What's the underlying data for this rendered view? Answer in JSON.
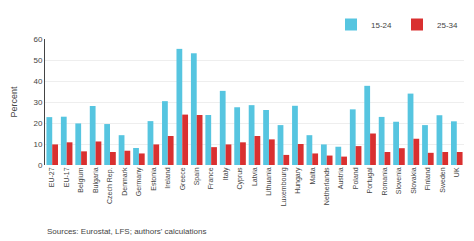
{
  "chart_data": {
    "type": "bar",
    "categories": [
      "EU-27",
      "EU-17",
      "Belgium",
      "Bulgaria",
      "Czech Rep.",
      "Denmark",
      "Germany",
      "Estonia",
      "Ireland",
      "Greece",
      "Spain",
      "France",
      "Italy",
      "Cyprus",
      "Latvia",
      "Lithuania",
      "Luxembourg",
      "Hungary",
      "Malta",
      "Netherlands",
      "Austria",
      "Poland",
      "Portugal",
      "Romania",
      "Slovenia",
      "Slovakia",
      "Finland",
      "Sweden",
      "UK"
    ],
    "series": [
      {
        "name": "15-24",
        "color": "#56c5e0",
        "values": [
          22.8,
          23.0,
          19.8,
          28.1,
          19.5,
          14.2,
          8.1,
          20.9,
          30.4,
          55.3,
          53.2,
          23.8,
          35.3,
          27.5,
          28.5,
          26.2,
          19.0,
          28.2,
          14.2,
          9.8,
          8.7,
          26.5,
          37.7,
          22.9,
          20.6,
          34.0,
          19.0,
          23.7,
          20.8
        ]
      },
      {
        "name": "25-34",
        "color": "#d93030",
        "values": [
          9.8,
          10.8,
          6.5,
          11.2,
          6.2,
          6.8,
          5.5,
          9.8,
          13.8,
          24.0,
          23.8,
          8.5,
          9.8,
          10.8,
          13.8,
          12.2,
          4.8,
          10.0,
          5.5,
          4.5,
          4.0,
          9.0,
          15.0,
          6.2,
          8.0,
          12.5,
          5.8,
          6.2,
          6.2
        ]
      }
    ],
    "ylabel": "Percent",
    "ylim": [
      0,
      60
    ],
    "yticks": [
      0,
      10,
      20,
      30,
      40,
      50,
      60
    ],
    "grid": true,
    "legend": "top",
    "annotations": [
      "Sources: Eurostat, LFS; authors' calculations"
    ]
  }
}
